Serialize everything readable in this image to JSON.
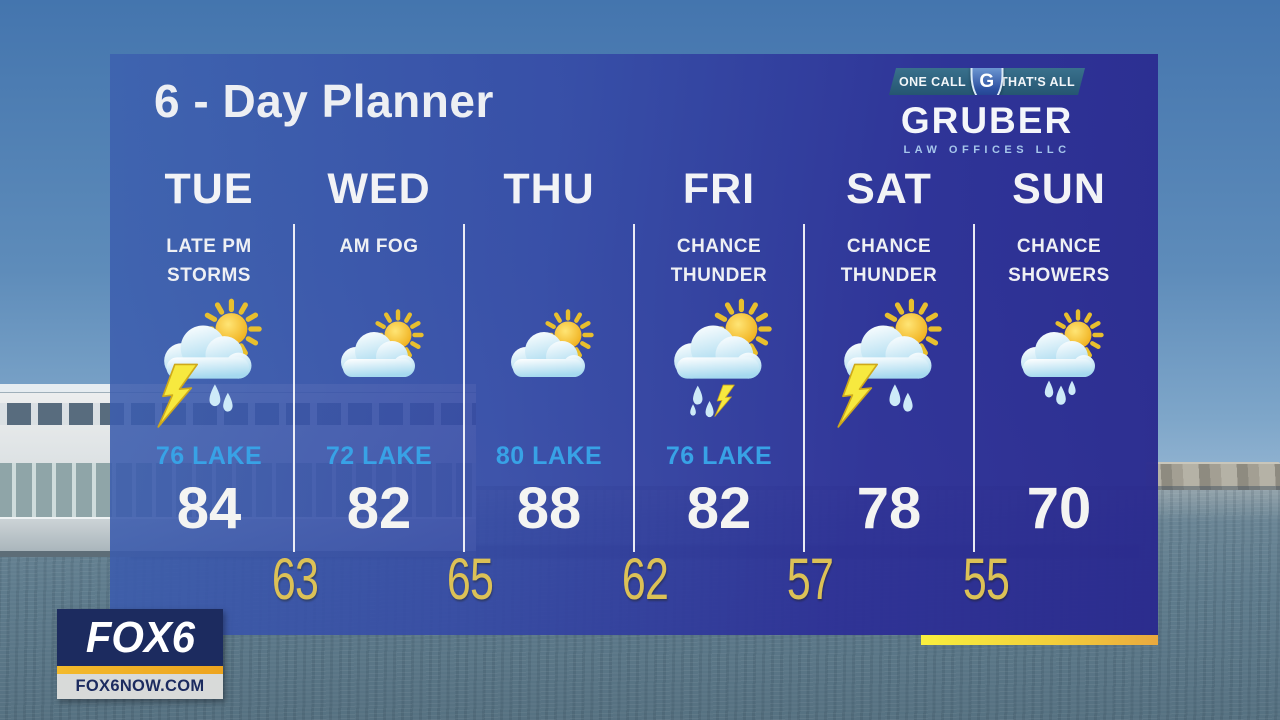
{
  "header": {
    "title": "6 - Day Planner"
  },
  "sponsor": {
    "tagline_left": "ONE CALL",
    "tagline_right": "THAT'S ALL",
    "shield_letter": "G",
    "name": "GRUBER",
    "subtitle": "LAW OFFICES LLC"
  },
  "planner": {
    "days": [
      {
        "name": "TUE",
        "cond1": "LATE PM",
        "cond2": "STORMS",
        "icon": "storm-sun",
        "lake": "76 LAKE",
        "high": "84"
      },
      {
        "name": "WED",
        "cond1": "AM FOG",
        "cond2": "",
        "icon": "partly-sunny",
        "lake": "72 LAKE",
        "high": "82"
      },
      {
        "name": "THU",
        "cond1": "",
        "cond2": "",
        "icon": "partly-sunny",
        "lake": "80 LAKE",
        "high": "88"
      },
      {
        "name": "FRI",
        "cond1": "CHANCE",
        "cond2": "THUNDER",
        "icon": "rain-thunder-sun",
        "lake": "76 LAKE",
        "high": "82"
      },
      {
        "name": "SAT",
        "cond1": "CHANCE",
        "cond2": "THUNDER",
        "icon": "storm-sun",
        "lake": "",
        "high": "78"
      },
      {
        "name": "SUN",
        "cond1": "CHANCE",
        "cond2": "SHOWERS",
        "icon": "showers-sun",
        "lake": "",
        "high": "70"
      }
    ],
    "overnight_lows": [
      "63",
      "65",
      "62",
      "57",
      "55"
    ],
    "colors": {
      "lake_temp": "#38a2e6",
      "low_temp": "#dcc156",
      "panel_left": "#3d61af",
      "panel_right": "#2a2a8e",
      "accent_gold": "#f3cf3a"
    }
  },
  "station": {
    "logo_text": "FOX6",
    "url_text": "FOX6NOW.COM"
  }
}
